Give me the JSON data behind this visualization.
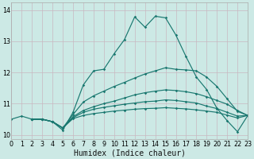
{
  "xlabel": "Humidex (Indice chaleur)",
  "xlim": [
    0,
    23
  ],
  "ylim": [
    9.85,
    14.25
  ],
  "yticks": [
    10,
    11,
    12,
    13,
    14
  ],
  "xticks": [
    0,
    1,
    2,
    3,
    4,
    5,
    6,
    7,
    8,
    9,
    10,
    11,
    12,
    13,
    14,
    15,
    16,
    17,
    18,
    19,
    20,
    21,
    22,
    23
  ],
  "bg_color": "#cce9e5",
  "grid_color": "#c0d8d5",
  "line_color": "#1a7870",
  "lines": [
    {
      "x": [
        0,
        1,
        2,
        3,
        4,
        5,
        6,
        7,
        8,
        9,
        10,
        11,
        12,
        13,
        14,
        15,
        16,
        17,
        18,
        19,
        20,
        21,
        22,
        23
      ],
      "y": [
        10.5,
        10.6,
        10.5,
        10.5,
        10.42,
        10.15,
        10.72,
        11.6,
        12.05,
        12.1,
        12.6,
        13.05,
        13.78,
        13.45,
        13.8,
        13.75,
        13.2,
        12.5,
        11.85,
        11.45,
        10.85,
        10.45,
        10.1,
        10.62
      ]
    },
    {
      "x": [
        2,
        3,
        4,
        5,
        6,
        7,
        8,
        9,
        10,
        11,
        12,
        13,
        14,
        15,
        16,
        17,
        18,
        19,
        20,
        21,
        22,
        23
      ],
      "y": [
        10.5,
        10.5,
        10.42,
        10.22,
        10.65,
        11.05,
        11.25,
        11.4,
        11.55,
        11.68,
        11.82,
        11.95,
        12.05,
        12.15,
        12.1,
        12.08,
        12.05,
        11.85,
        11.55,
        11.15,
        10.75,
        10.62
      ]
    },
    {
      "x": [
        2,
        3,
        4,
        5,
        6,
        7,
        8,
        9,
        10,
        11,
        12,
        13,
        14,
        15,
        16,
        17,
        18,
        19,
        20,
        21,
        22,
        23
      ],
      "y": [
        10.5,
        10.5,
        10.42,
        10.22,
        10.58,
        10.78,
        10.9,
        11.0,
        11.08,
        11.18,
        11.28,
        11.35,
        11.4,
        11.44,
        11.42,
        11.38,
        11.32,
        11.22,
        11.1,
        10.98,
        10.78,
        10.62
      ]
    },
    {
      "x": [
        2,
        3,
        4,
        5,
        6,
        7,
        8,
        9,
        10,
        11,
        12,
        13,
        14,
        15,
        16,
        17,
        18,
        19,
        20,
        21,
        22,
        23
      ],
      "y": [
        10.5,
        10.5,
        10.42,
        10.22,
        10.55,
        10.72,
        10.82,
        10.88,
        10.93,
        10.98,
        11.02,
        11.06,
        11.08,
        11.12,
        11.1,
        11.06,
        11.02,
        10.92,
        10.84,
        10.72,
        10.6,
        10.62
      ]
    },
    {
      "x": [
        2,
        3,
        4,
        5,
        6,
        7,
        8,
        9,
        10,
        11,
        12,
        13,
        14,
        15,
        16,
        17,
        18,
        19,
        20,
        21,
        22,
        23
      ],
      "y": [
        10.5,
        10.5,
        10.42,
        10.22,
        10.52,
        10.62,
        10.68,
        10.72,
        10.76,
        10.79,
        10.82,
        10.84,
        10.85,
        10.87,
        10.85,
        10.83,
        10.8,
        10.76,
        10.72,
        10.63,
        10.54,
        10.62
      ]
    }
  ]
}
